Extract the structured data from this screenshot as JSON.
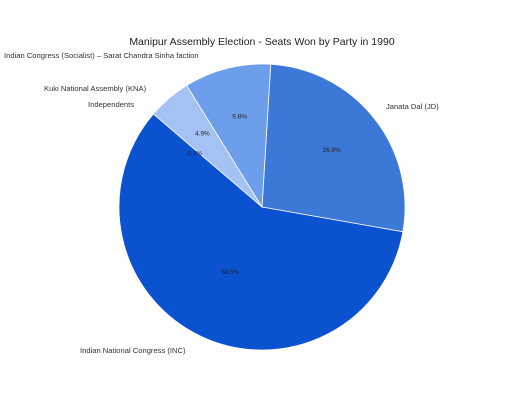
{
  "chart_data": {
    "type": "pie",
    "title": "Manipur Assembly Election - Seats Won by Party in 1990",
    "slices": [
      {
        "name": "Janata Dal (JD)",
        "value": 26.8,
        "label": "26.8%",
        "color": "#3c78d8"
      },
      {
        "name": "Indian National Congress (INC)",
        "value": 58.5,
        "label": "58.5%",
        "color": "#0b52d0"
      },
      {
        "name": "Independents",
        "value": 0.0,
        "label": "0.0%",
        "color": "#4a86e8"
      },
      {
        "name": "Kuki National Assembly (KNA)",
        "value": 4.9,
        "label": "4.9%",
        "color": "#a4c2f4"
      },
      {
        "name": "Indian Congress (Socialist) – Sarat Chandra Sinha faction",
        "value": 9.8,
        "label": "9.8%",
        "color": "#6d9eeb"
      }
    ],
    "start_angle_deg": 3.5,
    "direction": "clockwise",
    "legend": "callout-labels"
  }
}
